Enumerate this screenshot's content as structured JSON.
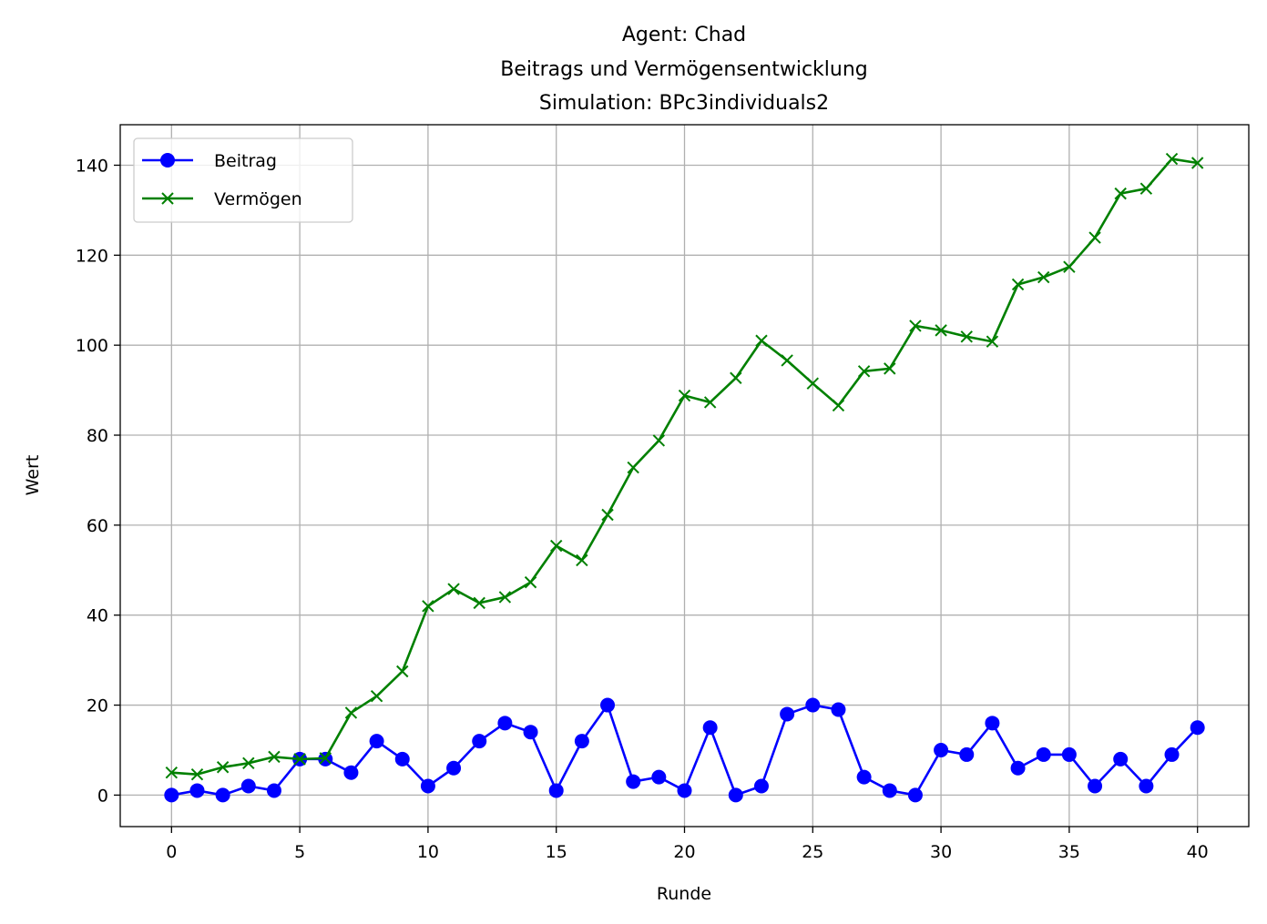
{
  "chart_data": {
    "type": "line",
    "title_lines": [
      "Agent: Chad",
      "Beitrags und Vermögensentwicklung",
      "Simulation: BPc3individuals2"
    ],
    "xlabel": "Runde",
    "ylabel": "Wert",
    "xlim": [
      -2,
      42
    ],
    "ylim": [
      -7,
      149
    ],
    "xticks": [
      0,
      5,
      10,
      15,
      20,
      25,
      30,
      35,
      40
    ],
    "yticks": [
      0,
      20,
      40,
      60,
      80,
      100,
      120,
      140
    ],
    "grid": true,
    "legend_position": "top-left",
    "x": [
      0,
      1,
      2,
      3,
      4,
      5,
      6,
      7,
      8,
      9,
      10,
      11,
      12,
      13,
      14,
      15,
      16,
      17,
      18,
      19,
      20,
      21,
      22,
      23,
      24,
      25,
      26,
      27,
      28,
      29,
      30,
      31,
      32,
      33,
      34,
      35,
      36,
      37,
      38,
      39,
      40
    ],
    "series": [
      {
        "name": "Beitrag",
        "color": "#0000ff",
        "marker": "circle",
        "values": [
          0,
          1,
          0,
          2,
          1,
          8,
          8,
          5,
          12,
          8,
          2,
          6,
          12,
          16,
          14,
          1,
          12,
          20,
          3,
          4,
          1,
          15,
          0,
          2,
          18,
          20,
          19,
          4,
          1,
          0,
          10,
          9,
          16,
          6,
          9,
          9,
          2,
          8,
          2,
          9,
          15
        ]
      },
      {
        "name": "Vermögen",
        "color": "#008000",
        "marker": "x",
        "values": [
          5,
          4.6,
          6.2,
          7.1,
          8.5,
          8,
          8.2,
          18.3,
          22,
          27.5,
          42,
          45.8,
          42.7,
          44,
          47.3,
          55.4,
          52.2,
          62.3,
          72.8,
          78.8,
          88.8,
          87.3,
          92.7,
          101,
          96.6,
          91.5,
          86.6,
          94.2,
          94.8,
          104.3,
          103.3,
          101.9,
          100.8,
          113.5,
          115.1,
          117.4,
          123.9,
          133.7,
          134.8,
          141.4,
          140.5
        ]
      }
    ]
  }
}
